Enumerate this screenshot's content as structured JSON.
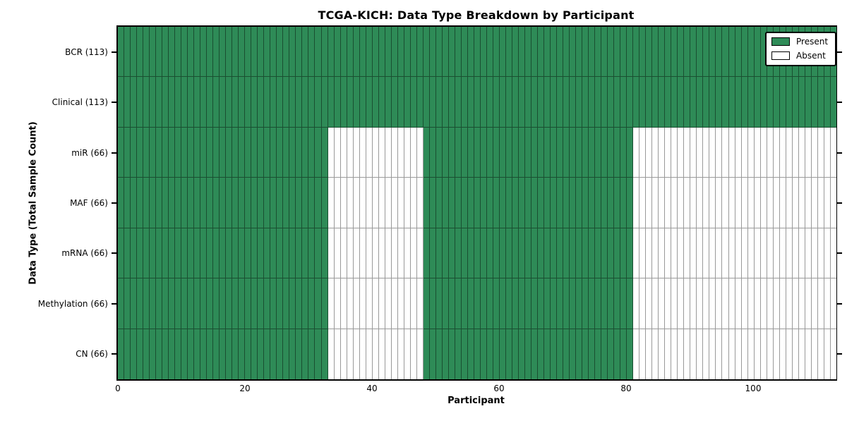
{
  "title": "TCGA-KICH: Data Type Breakdown by Participant",
  "x_axis": {
    "label": "Participant",
    "ticks": [
      0,
      20,
      40,
      60,
      80,
      100
    ],
    "max": 113
  },
  "y_axis": {
    "label": "Data Type (Total Sample Count)"
  },
  "legend": {
    "items": [
      {
        "label": "Present",
        "state": "present"
      },
      {
        "label": "Absent",
        "state": "absent"
      }
    ]
  },
  "colors": {
    "present": "#2e8b57",
    "absent": "#ffffff",
    "present_edge": "#1a4f31",
    "absent_edge": "#999999",
    "spine": "#000000"
  },
  "chart_data": {
    "type": "heatmap",
    "title": "TCGA-KICH: Data Type Breakdown by Participant",
    "xlabel": "Participant",
    "ylabel": "Data Type (Total Sample Count)",
    "x_range": [
      0,
      113
    ],
    "x_ticks": [
      0,
      20,
      40,
      60,
      80,
      100
    ],
    "grid": "per-cell edges",
    "legend_position": "upper right",
    "legend_entries": [
      "Present",
      "Absent"
    ],
    "categories": [
      "BCR (113)",
      "Clinical (113)",
      "miR (66)",
      "MAF (66)",
      "mRNA (66)",
      "Methylation (66)",
      "CN (66)"
    ],
    "rows": [
      {
        "label": "BCR (113)",
        "present_total": 113,
        "segments": [
          {
            "state": "present",
            "start": 0,
            "end": 113
          }
        ]
      },
      {
        "label": "Clinical (113)",
        "present_total": 113,
        "segments": [
          {
            "state": "present",
            "start": 0,
            "end": 113
          }
        ]
      },
      {
        "label": "miR (66)",
        "present_total": 66,
        "segments": [
          {
            "state": "present",
            "start": 0,
            "end": 33
          },
          {
            "state": "absent",
            "start": 33,
            "end": 48
          },
          {
            "state": "present",
            "start": 48,
            "end": 81
          },
          {
            "state": "absent",
            "start": 81,
            "end": 113
          }
        ]
      },
      {
        "label": "MAF (66)",
        "present_total": 66,
        "segments": [
          {
            "state": "present",
            "start": 0,
            "end": 33
          },
          {
            "state": "absent",
            "start": 33,
            "end": 48
          },
          {
            "state": "present",
            "start": 48,
            "end": 81
          },
          {
            "state": "absent",
            "start": 81,
            "end": 113
          }
        ]
      },
      {
        "label": "mRNA (66)",
        "present_total": 66,
        "segments": [
          {
            "state": "present",
            "start": 0,
            "end": 33
          },
          {
            "state": "absent",
            "start": 33,
            "end": 48
          },
          {
            "state": "present",
            "start": 48,
            "end": 81
          },
          {
            "state": "absent",
            "start": 81,
            "end": 113
          }
        ]
      },
      {
        "label": "Methylation (66)",
        "present_total": 66,
        "segments": [
          {
            "state": "present",
            "start": 0,
            "end": 33
          },
          {
            "state": "absent",
            "start": 33,
            "end": 48
          },
          {
            "state": "present",
            "start": 48,
            "end": 81
          },
          {
            "state": "absent",
            "start": 81,
            "end": 113
          }
        ]
      },
      {
        "label": "CN (66)",
        "present_total": 66,
        "segments": [
          {
            "state": "present",
            "start": 0,
            "end": 33
          },
          {
            "state": "absent",
            "start": 33,
            "end": 48
          },
          {
            "state": "present",
            "start": 48,
            "end": 81
          },
          {
            "state": "absent",
            "start": 81,
            "end": 113
          }
        ]
      }
    ]
  }
}
